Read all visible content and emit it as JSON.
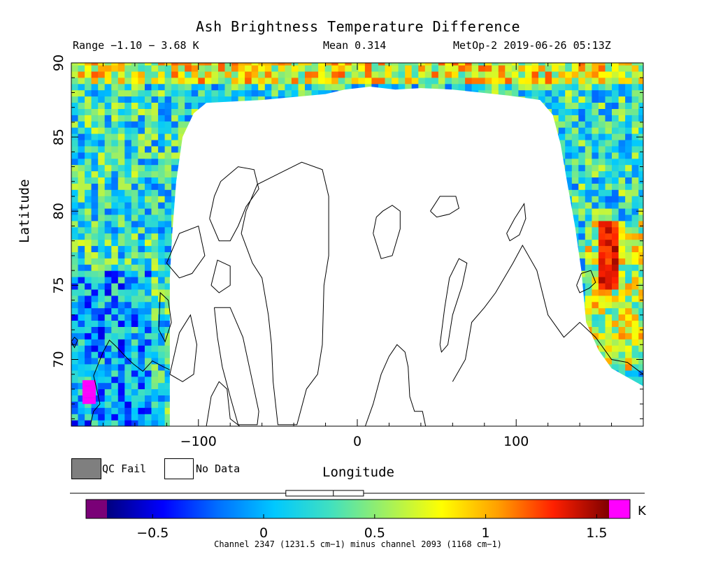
{
  "header": {
    "title": "Ash Brightness Temperature Difference",
    "range": "Range −1.10 − 3.68 K",
    "mean": "Mean 0.314",
    "satellite_time": "MetOp-2 2019-06-26 05:13Z"
  },
  "map": {
    "type": "map",
    "projection": "latitude-longitude",
    "x_axis": {
      "label": "Longitude",
      "range": [
        -180,
        180
      ],
      "ticks": [
        -100,
        0,
        100
      ],
      "tick_labels": [
        "−100",
        "0",
        "100"
      ]
    },
    "y_axis": {
      "label": "Latitude",
      "range": [
        65.5,
        90
      ],
      "ticks": [
        70,
        75,
        80,
        85,
        90
      ],
      "tick_labels": [
        "70",
        "75",
        "80",
        "85",
        "90"
      ]
    },
    "no_data_region": "white area between roughly −118 and 143 longitude, below about 87 latitude",
    "notable_features": [
      {
        "description": "elevated (red/dark-red) values near 153 to 158 longitude, 75 to 79 latitude"
      },
      {
        "description": "magenta (out-of-range high) values near −173 to −166 longitude, 67 to 68.5 latitude"
      }
    ],
    "colors": {
      "qc_fail": "#7f7f7f",
      "no_data": "#ffffff",
      "coastline": "#000000"
    }
  },
  "legend": {
    "qc_fail_label": "QC Fail",
    "no_data_label": "No Data"
  },
  "colorbar": {
    "unit": "K",
    "range": [
      -0.8,
      1.65
    ],
    "ticks": [
      -0.5,
      0,
      0.5,
      1,
      1.5
    ],
    "tick_labels": [
      "−0.5",
      "0",
      "0.5",
      "1",
      "1.5"
    ],
    "under_color": "#7a0077",
    "over_color": "#ff00ff",
    "colormap": [
      "#00007f",
      "#0000ff",
      "#0070ff",
      "#00c8ff",
      "#40e0c0",
      "#a0f060",
      "#ffff00",
      "#ffa000",
      "#ff2000",
      "#7f0000"
    ],
    "indicator_box_range": [
      0.1,
      0.45
    ],
    "indicator_mean": 0.314
  },
  "footnote": "Channel 2347 (1231.5 cm−1) minus channel 2093 (1168 cm−1)"
}
